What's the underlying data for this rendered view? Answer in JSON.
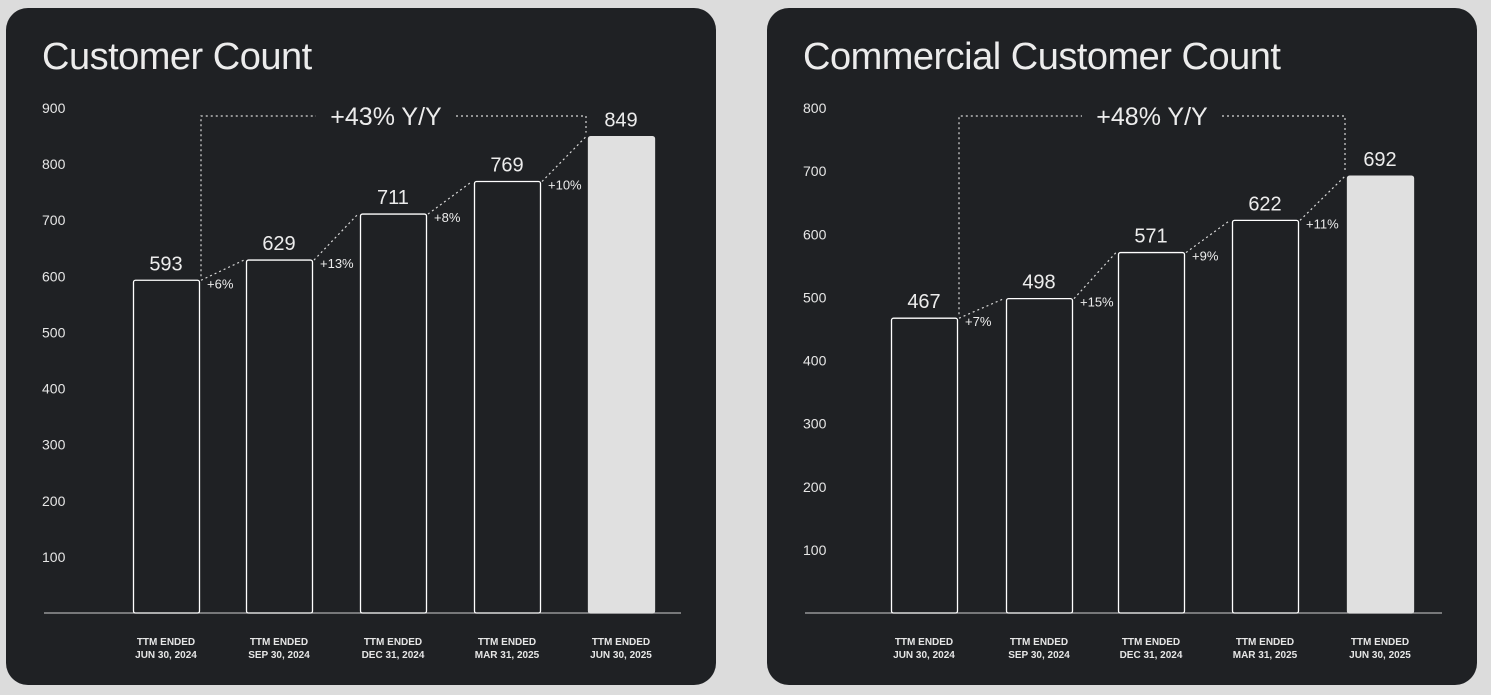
{
  "chart_data": [
    {
      "type": "bar",
      "title": "Customer Count",
      "categories": [
        "TTM ENDED|JUN 30, 2024",
        "TTM ENDED|SEP 30, 2024",
        "TTM ENDED|DEC 31, 2024",
        "TTM ENDED|MAR 31, 2025",
        "TTM ENDED|JUN 30, 2025"
      ],
      "values": [
        593,
        629,
        711,
        769,
        849
      ],
      "growth_labels": [
        "+6%",
        "+13%",
        "+8%",
        "+10%"
      ],
      "yoy_label": "+43% Y/Y",
      "yticks": [
        100,
        200,
        300,
        400,
        500,
        600,
        700,
        800,
        900
      ],
      "ylim": [
        0,
        900
      ],
      "highlight_index": 4,
      "colors": {
        "background": "#1f2124",
        "bar_outline": "#ffffff",
        "highlight_fill": "#e0e0e0",
        "text": "#ececec"
      }
    },
    {
      "type": "bar",
      "title": "Commercial Customer Count",
      "categories": [
        "TTM ENDED|JUN 30, 2024",
        "TTM ENDED|SEP 30, 2024",
        "TTM ENDED|DEC 31, 2024",
        "TTM ENDED|MAR 31, 2025",
        "TTM ENDED|JUN 30, 2025"
      ],
      "values": [
        467,
        498,
        571,
        622,
        692
      ],
      "growth_labels": [
        "+7%",
        "+15%",
        "+9%",
        "+11%"
      ],
      "yoy_label": "+48% Y/Y",
      "yticks": [
        100,
        200,
        300,
        400,
        500,
        600,
        700,
        800
      ],
      "ylim": [
        0,
        800
      ],
      "highlight_index": 4,
      "colors": {
        "background": "#1f2124",
        "bar_outline": "#ffffff",
        "highlight_fill": "#e0e0e0",
        "text": "#ececec"
      }
    }
  ]
}
